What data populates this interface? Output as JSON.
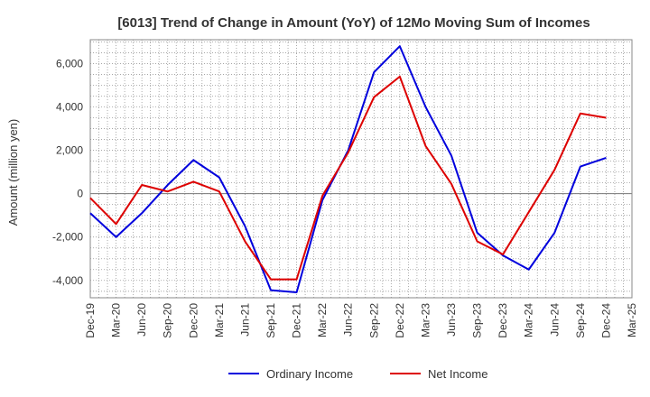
{
  "chart_data": {
    "type": "line",
    "title": "[6013]  Trend of Change in Amount (YoY) of 12Mo Moving Sum of Incomes",
    "xlabel": "",
    "ylabel": "Amount (million yen)",
    "categories": [
      "Dec-19",
      "Mar-20",
      "Jun-20",
      "Sep-20",
      "Dec-20",
      "Mar-21",
      "Jun-21",
      "Sep-21",
      "Dec-21",
      "Mar-22",
      "Jun-22",
      "Sep-22",
      "Dec-22",
      "Mar-23",
      "Jun-23",
      "Sep-23",
      "Dec-23",
      "Mar-24",
      "Jun-24",
      "Sep-24",
      "Dec-24",
      "Mar-25"
    ],
    "ylim": [
      -4800,
      7100
    ],
    "yticks": [
      -4000,
      -2000,
      0,
      2000,
      4000,
      6000
    ],
    "ytick_labels": [
      "-4,000",
      "-2,000",
      "0",
      "2,000",
      "4,000",
      "6,000"
    ],
    "grid": true,
    "legend_position": "bottom-center",
    "series": [
      {
        "name": "Ordinary Income",
        "color": "#0000dd",
        "values": [
          -900,
          -2000,
          -900,
          400,
          1550,
          750,
          -1500,
          -4450,
          -4550,
          -300,
          2000,
          5600,
          6800,
          4000,
          1750,
          -1800,
          -2850,
          -3500,
          -1800,
          1250,
          1650,
          null
        ]
      },
      {
        "name": "Net Income",
        "color": "#dd0000",
        "values": [
          -200,
          -1400,
          400,
          100,
          550,
          100,
          -2200,
          -3950,
          -3950,
          -100,
          1900,
          4450,
          5400,
          2200,
          450,
          -2200,
          -2800,
          -850,
          1100,
          3700,
          3500,
          null
        ]
      }
    ]
  }
}
